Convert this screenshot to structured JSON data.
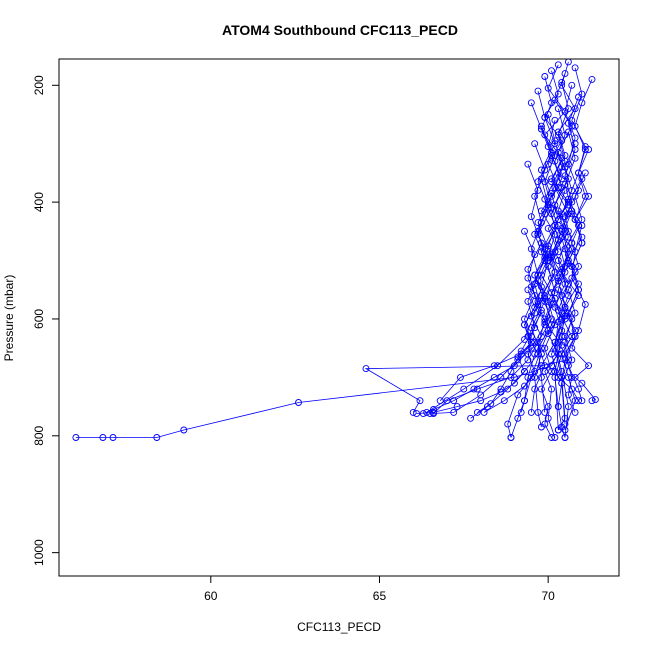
{
  "chart_data": {
    "type": "line",
    "title": "ATOM4 Southbound CFC113_PECD",
    "xlabel": "CFC113_PECD",
    "ylabel": "Pressure (mbar)",
    "xlim": [
      55.5,
      72.1
    ],
    "ylim": [
      1040,
      155
    ],
    "y_reversed": true,
    "grid": false,
    "x_ticks": [
      60,
      65,
      70
    ],
    "y_ticks": [
      200,
      400,
      600,
      800,
      1000
    ],
    "color": "#0000ff",
    "series": [
      {
        "x": [
          70.6,
          70.4,
          70.8,
          70.3,
          70.5,
          70.1,
          70.6,
          70.2,
          70.7,
          70.4,
          70.9,
          70.5,
          70.3,
          70.6,
          69.8,
          64.6,
          66.2,
          66.0
        ],
        "y": [
          160,
          200,
          240,
          280,
          320,
          360,
          400,
          440,
          480,
          520,
          560,
          600,
          640,
          670,
          680,
          685,
          740,
          760
        ]
      },
      {
        "x": [
          70.3,
          70.0,
          70.5,
          69.9,
          70.4,
          70.1,
          70.6,
          70.0,
          70.3,
          69.8,
          70.2,
          69.9,
          70.4,
          70.1,
          69.0,
          62.6,
          59.2,
          58.4,
          57.1,
          56.8,
          56.0
        ],
        "y": [
          165,
          205,
          245,
          285,
          325,
          365,
          405,
          445,
          485,
          525,
          565,
          605,
          645,
          680,
          700,
          743,
          790,
          803,
          803,
          803,
          803
        ]
      },
      {
        "x": [
          70.8,
          71.0,
          70.7,
          71.1,
          70.9,
          70.6,
          71.0,
          70.8,
          70.7,
          71.1,
          70.9,
          70.7,
          71.2,
          70.8,
          71.0,
          71.4,
          71.3
        ],
        "y": [
          170,
          215,
          260,
          305,
          350,
          395,
          440,
          485,
          530,
          575,
          620,
          650,
          680,
          700,
          710,
          738,
          740
        ]
      },
      {
        "x": [
          70.1,
          70.3,
          69.9,
          70.4,
          70.0,
          70.3,
          69.8,
          70.2,
          70.0,
          69.7,
          70.1,
          69.9,
          69.6,
          69.2,
          68.4,
          67.4,
          66.8
        ],
        "y": [
          175,
          215,
          255,
          295,
          335,
          375,
          415,
          455,
          495,
          535,
          575,
          610,
          640,
          660,
          680,
          700,
          740
        ]
      },
      {
        "x": [
          70.5,
          70.2,
          70.7,
          70.3,
          70.6,
          70.2,
          70.5,
          70.1,
          70.6,
          70.3,
          70.7,
          70.4,
          70.2,
          70.3,
          70.4,
          70.5
        ],
        "y": [
          180,
          225,
          270,
          315,
          360,
          405,
          450,
          495,
          540,
          585,
          630,
          660,
          700,
          750,
          785,
          803
        ]
      },
      {
        "x": [
          71.3,
          71.0,
          70.8,
          71.1,
          70.9,
          71.2,
          70.8,
          71.0,
          70.7,
          70.9,
          70.6,
          70.8,
          70.5,
          70.4,
          70.3
        ],
        "y": [
          190,
          230,
          270,
          310,
          350,
          390,
          430,
          470,
          510,
          550,
          590,
          630,
          670,
          710,
          750
        ]
      },
      {
        "x": [
          69.9,
          70.1,
          69.8,
          70.2,
          69.9,
          70.1,
          69.7,
          70.0,
          69.8,
          69.6,
          69.3,
          68.5,
          67.5,
          66.4
        ],
        "y": [
          185,
          230,
          275,
          320,
          365,
          410,
          455,
          500,
          545,
          590,
          635,
          680,
          720,
          760
        ]
      },
      {
        "x": [
          70.4,
          70.6,
          70.3,
          70.5,
          70.2,
          70.6,
          70.3,
          70.5,
          70.1,
          70.4,
          70.2,
          69.8,
          69.1,
          68.8,
          68.9
        ],
        "y": [
          195,
          240,
          285,
          330,
          375,
          420,
          465,
          510,
          555,
          600,
          640,
          680,
          730,
          780,
          803
        ]
      },
      {
        "x": [
          69.5,
          69.8,
          70.1,
          69.7,
          70.0,
          69.6,
          69.9,
          69.5,
          69.8,
          69.4,
          69.7,
          69.3,
          68.8,
          68.2,
          67.7
        ],
        "y": [
          230,
          275,
          320,
          365,
          410,
          455,
          500,
          545,
          590,
          630,
          660,
          690,
          720,
          750,
          770
        ]
      },
      {
        "x": [
          71.2,
          70.9,
          71.1,
          70.8,
          71.0,
          70.7,
          70.9,
          70.6,
          70.8,
          70.5,
          70.7,
          70.6,
          70.8
        ],
        "y": [
          310,
          350,
          390,
          430,
          470,
          510,
          550,
          590,
          630,
          660,
          700,
          730,
          760
        ]
      },
      {
        "x": [
          69.4,
          69.7,
          69.5,
          69.8,
          69.4,
          69.6,
          69.3,
          69.5,
          69.1,
          68.6,
          68.0,
          67.2,
          66.5
        ],
        "y": [
          335,
          380,
          425,
          470,
          515,
          560,
          600,
          640,
          670,
          700,
          730,
          760,
          762
        ]
      },
      {
        "x": [
          70.0,
          70.2,
          70.4,
          70.1,
          70.3,
          70.0,
          70.2,
          69.9,
          70.1,
          69.8,
          69.5,
          69.3,
          69.2
        ],
        "y": [
          250,
          295,
          340,
          385,
          430,
          475,
          520,
          565,
          610,
          650,
          700,
          740,
          760
        ]
      },
      {
        "x": [
          70.7,
          70.5,
          70.8,
          70.6,
          70.9,
          70.5,
          70.7,
          70.4,
          70.6,
          70.3,
          70.2,
          70.4,
          70.5,
          70.3
        ],
        "y": [
          200,
          245,
          290,
          335,
          380,
          425,
          470,
          515,
          560,
          605,
          650,
          700,
          770,
          790
        ]
      },
      {
        "x": [
          69.7,
          69.9,
          70.2,
          69.8,
          70.1,
          69.7,
          70.0,
          69.6,
          69.9,
          69.5,
          69.8,
          69.6,
          69.7,
          69.8
        ],
        "y": [
          210,
          255,
          300,
          345,
          390,
          435,
          480,
          525,
          570,
          615,
          660,
          700,
          760,
          785
        ]
      },
      {
        "x": [
          71.0,
          70.6,
          70.9,
          70.5,
          70.8,
          70.4,
          70.7,
          70.5,
          70.6,
          70.9,
          71.0
        ],
        "y": [
          360,
          400,
          440,
          480,
          520,
          560,
          600,
          640,
          680,
          720,
          740
        ]
      },
      {
        "x": [
          69.3,
          69.6,
          69.4,
          69.7,
          69.3,
          69.5,
          69.0,
          68.4,
          67.8,
          67.2,
          66.6,
          66.3
        ],
        "y": [
          450,
          490,
          530,
          570,
          610,
          650,
          680,
          700,
          720,
          740,
          755,
          762
        ]
      },
      {
        "x": [
          70.3,
          70.5,
          70.2,
          70.4,
          70.1,
          70.3,
          70.0,
          70.2,
          69.9,
          69.7,
          69.8,
          69.9
        ],
        "y": [
          240,
          285,
          330,
          375,
          420,
          465,
          510,
          555,
          600,
          650,
          700,
          760
        ]
      },
      {
        "x": [
          71.1,
          70.8,
          71.0,
          70.7,
          70.9,
          70.6,
          70.8,
          70.5,
          70.7,
          70.4,
          70.5
        ],
        "y": [
          350,
          390,
          430,
          470,
          510,
          550,
          590,
          630,
          670,
          710,
          780
        ]
      },
      {
        "x": [
          69.6,
          69.9,
          69.6,
          69.8,
          69.5,
          69.7,
          69.4,
          69.6,
          69.2,
          68.9,
          68.6,
          68.3,
          67.9
        ],
        "y": [
          300,
          345,
          390,
          435,
          480,
          525,
          570,
          615,
          655,
          690,
          720,
          745,
          760
        ]
      },
      {
        "x": [
          70.9,
          70.6,
          70.8,
          70.5,
          70.7,
          70.4,
          70.6,
          70.3,
          70.5,
          70.4,
          70.2,
          70.3
        ],
        "y": [
          220,
          265,
          310,
          355,
          400,
          445,
          490,
          535,
          580,
          630,
          690,
          790
        ]
      },
      {
        "x": [
          70.2,
          70.0,
          70.3,
          69.9,
          70.2,
          69.8,
          70.1,
          69.7,
          70.0,
          69.6,
          69.4,
          69.3,
          69.1,
          68.9
        ],
        "y": [
          260,
          305,
          350,
          395,
          440,
          485,
          530,
          575,
          620,
          660,
          700,
          740,
          770,
          803
        ]
      },
      {
        "x": [
          70.6,
          70.8,
          70.5,
          70.7,
          70.4,
          70.6,
          70.3,
          70.5,
          70.2,
          70.4,
          70.6,
          70.5
        ],
        "y": [
          280,
          325,
          370,
          415,
          460,
          505,
          550,
          595,
          640,
          690,
          750,
          803
        ]
      },
      {
        "x": [
          69.8,
          70.1,
          69.8,
          70.0,
          69.7,
          69.9,
          69.6,
          69.8,
          69.5,
          69.4,
          68.9,
          67.9,
          67.0,
          66.6
        ],
        "y": [
          270,
          315,
          360,
          405,
          450,
          495,
          540,
          585,
          630,
          670,
          700,
          720,
          740,
          762
        ]
      },
      {
        "x": [
          70.8,
          70.5,
          70.7,
          70.4,
          70.6,
          70.3,
          70.5,
          70.2,
          70.4,
          70.1,
          70.3,
          70.7,
          70.9
        ],
        "y": [
          300,
          340,
          380,
          420,
          460,
          500,
          540,
          580,
          620,
          660,
          700,
          720,
          740
        ]
      },
      {
        "x": [
          70.1,
          70.4,
          70.0,
          70.3,
          69.9,
          70.2,
          69.8,
          70.1,
          69.7,
          69.9,
          69.6,
          69.5
        ],
        "y": [
          320,
          360,
          400,
          440,
          480,
          520,
          560,
          600,
          640,
          680,
          720,
          760
        ]
      },
      {
        "x": [
          70.5,
          70.3,
          70.6,
          70.2,
          70.5,
          70.1,
          70.4,
          70.0,
          70.3,
          69.9,
          70.1,
          70.0,
          70.2
        ],
        "y": [
          380,
          415,
          450,
          485,
          520,
          555,
          590,
          625,
          660,
          690,
          720,
          770,
          803
        ]
      },
      {
        "x": [
          69.9,
          69.7,
          70.0,
          69.6,
          69.9,
          69.5,
          69.8,
          69.4,
          69.6,
          69.3,
          68.7,
          68.1
        ],
        "y": [
          420,
          455,
          490,
          525,
          560,
          595,
          630,
          660,
          690,
          715,
          740,
          760
        ]
      },
      {
        "x": [
          70.7,
          71.0,
          70.6,
          70.9,
          70.5,
          70.8,
          70.4,
          70.6,
          70.8,
          70.5
        ],
        "y": [
          420,
          460,
          500,
          540,
          580,
          620,
          660,
          700,
          740,
          790
        ]
      },
      {
        "x": [
          69.4,
          69.6,
          69.3,
          69.5,
          69.1,
          69.3,
          69.0,
          68.6,
          68.0,
          67.3,
          66.6,
          66.1
        ],
        "y": [
          550,
          580,
          610,
          640,
          665,
          690,
          710,
          725,
          740,
          750,
          760,
          762
        ]
      },
      {
        "x": [
          70.4,
          70.1,
          70.3,
          70.0,
          70.2,
          69.9,
          70.1,
          69.8,
          70.0,
          69.9,
          70.1
        ],
        "y": [
          450,
          490,
          530,
          570,
          610,
          650,
          690,
          720,
          750,
          780,
          803
        ]
      }
    ]
  }
}
